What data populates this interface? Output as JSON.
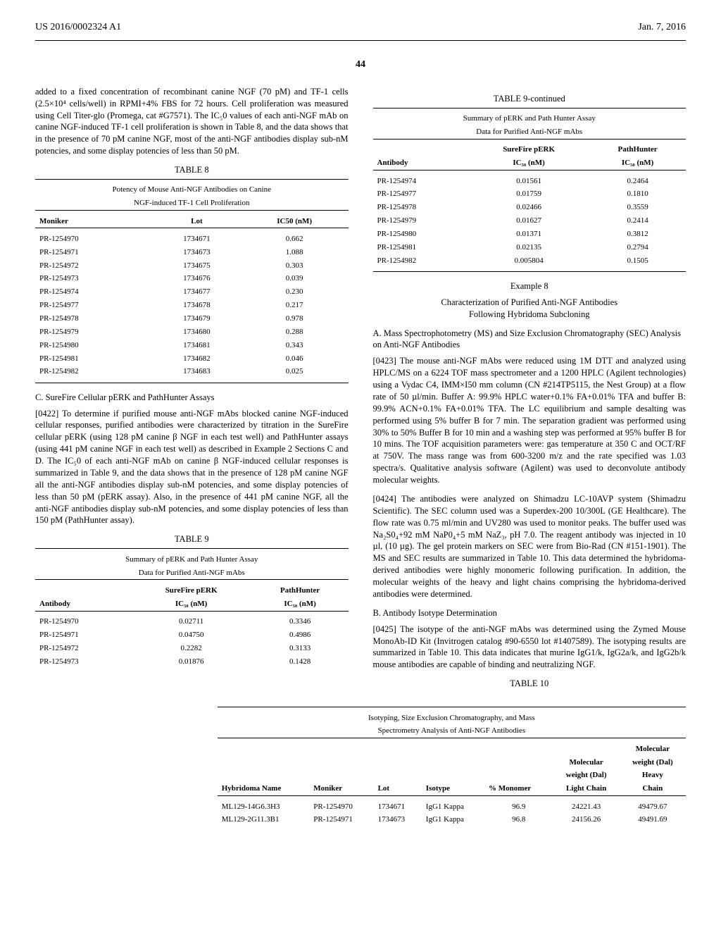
{
  "header": {
    "doc_number": "US 2016/0002324 A1",
    "date": "Jan. 7, 2016"
  },
  "page_number": "44",
  "left_col": {
    "intro_para": "added to a fixed concentration of recombinant canine NGF (70 pM) and TF-1 cells (2.5×10⁴ cells/well) in RPMI+4% FBS for 72 hours. Cell proliferation was measured using Cell Titer-glo (Promega, cat #G7571). The IC₅0 values of each anti-NGF mAb on canine NGF-induced TF-1 cell proliferation is shown in Table 8, and the data shows that in the presence of 70 pM canine NGF, most of the anti-NGF antibodies display sub-nM potencies, and some display potencies of less than 50 pM.",
    "table8": {
      "label": "TABLE 8",
      "title1": "Potency of Mouse Anti-NGF Antibodies on Canine",
      "title2": "NGF-induced TF-1 Cell Proliferation",
      "cols": [
        "Moniker",
        "Lot",
        "IC50 (nM)"
      ],
      "rows": [
        [
          "PR-1254970",
          "1734671",
          "0.662"
        ],
        [
          "PR-1254971",
          "1734673",
          "1.088"
        ],
        [
          "PR-1254972",
          "1734675",
          "0.303"
        ],
        [
          "PR-1254973",
          "1734676",
          "0.039"
        ],
        [
          "PR-1254974",
          "1734677",
          "0.230"
        ],
        [
          "PR-1254977",
          "1734678",
          "0.217"
        ],
        [
          "PR-1254978",
          "1734679",
          "0.978"
        ],
        [
          "PR-1254979",
          "1734680",
          "0.288"
        ],
        [
          "PR-1254980",
          "1734681",
          "0.343"
        ],
        [
          "PR-1254981",
          "1734682",
          "0.046"
        ],
        [
          "PR-1254982",
          "1734683",
          "0.025"
        ]
      ]
    },
    "section_c_heading": "C. SureFire Cellular pERK and PathHunter Assays",
    "para_0422": "[0422]   To determine if purified mouse anti-NGF mAbs blocked canine NGF-induced cellular responses, purified antibodies were characterized by titration in the SureFire cellular pERK (using 128 pM canine β NGF in each test well) and PathHunter assays (using 441 pM canine NGF in each test well) as described in Example 2 Sections C and D. The IC₅0 of each anti-NGF mAb on canine β NGF-induced cellular responses is summarized in Table 9, and the data shows that in the presence of 128 pM canine NGF all the anti-NGF antibodies display sub-nM potencies, and some display potencies of less than 50 pM (pERK assay). Also, in the presence of 441 pM canine NGF, all the anti-NGF antibodies display sub-nM potencies, and some display potencies of less than 150 pM (PathHunter assay).",
    "table9": {
      "label": "TABLE 9",
      "title1": "Summary of pERK and Path Hunter Assay",
      "title2": "Data for Purified Anti-NGF mAbs",
      "cols": [
        "Antibody",
        "SureFire pERK IC₅₀ (nM)",
        "PathHunter IC₅₀ (nM)"
      ],
      "col1": "Antibody",
      "col2a": "SureFire pERK",
      "col2b": "IC₅₀ (nM)",
      "col3a": "PathHunter",
      "col3b": "IC₅₀ (nM)",
      "rows": [
        [
          "PR-1254970",
          "0.02711",
          "0.3346"
        ],
        [
          "PR-1254971",
          "0.04750",
          "0.4986"
        ],
        [
          "PR-1254972",
          "0.2282",
          "0.3133"
        ],
        [
          "PR-1254973",
          "0.01876",
          "0.1428"
        ]
      ]
    }
  },
  "right_col": {
    "table9c": {
      "label": "TABLE 9-continued",
      "title1": "Summary of pERK and Path Hunter Assay",
      "title2": "Data for Purified Anti-NGF mAbs",
      "col1": "Antibody",
      "col2a": "SureFire pERK",
      "col2b": "IC₅₀ (nM)",
      "col3a": "PathHunter",
      "col3b": "IC₅₀ (nM)",
      "rows": [
        [
          "PR-1254974",
          "0.01561",
          "0.2464"
        ],
        [
          "PR-1254977",
          "0.01759",
          "0.1810"
        ],
        [
          "PR-1254978",
          "0.02466",
          "0.3559"
        ],
        [
          "PR-1254979",
          "0.01627",
          "0.2414"
        ],
        [
          "PR-1254980",
          "0.01371",
          "0.3812"
        ],
        [
          "PR-1254981",
          "0.02135",
          "0.2794"
        ],
        [
          "PR-1254982",
          "0.005804",
          "0.1505"
        ]
      ]
    },
    "example8_label": "Example 8",
    "example8_title1": "Characterization of Purified Anti-NGF Antibodies",
    "example8_title2": "Following Hybridoma Subcloning",
    "section_a_heading": "A. Mass Spectrophotometry (MS) and Size Exclusion Chromatography (SEC) Analysis on Anti-NGF Antibodies",
    "para_0423": "[0423]   The mouse anti-NGF mAbs were reduced using 1M DTT and analyzed using HPLC/MS on a 6224 TOF mass spectrometer and a 1200 HPLC (Agilent technologies) using a Vydac C4, IMM×I50 mm column (CN #214TP5115, the Nest Group) at a flow rate of 50 µl/min. Buffer A: 99.9% HPLC water+0.1% FA+0.01% TFA and buffer B: 99.9% ACN+0.1% FA+0.01% TFA. The LC equilibrium and sample desalting was performed using 5% buffer B for 7 min. The separation gradient was performed using 30% to 50% Buffer B for 10 min and a washing step was performed at 95% buffer B for 10 mins. The TOF acquisition parameters were: gas temperature at 350 C and OCT/RF at 750V. The mass range was from 600-3200 m/z and the rate specified was 1.03 spectra/s. Qualitative analysis software (Agilent) was used to deconvolute antibody molecular weights.",
    "para_0424": "[0424]   The antibodies were analyzed on Shimadzu LC-10AVP system (Shimadzu Scientific). The SEC column used was a Superdex-200 10/300L (GE Healthcare). The flow rate was 0.75 ml/min and UV280 was used to monitor peaks. The buffer used was Na₂S0₄+92 mM NaP0₄+5 mM NaZ₃, pH 7.0. The reagent antibody was injected in 10 µl, (10 µg). The gel protein markers on SEC were from Bio-Rad (CN #151-1901). The MS and SEC results are summarized in Table 10. This data determined the hybridoma-derived antibodies were highly monomeric following purification. In addition, the molecular weights of the heavy and light chains comprising the hybridoma-derived antibodies were determined.",
    "section_b_heading": "B. Antibody Isotype Determination",
    "para_0425": "[0425]   The isotype of the anti-NGF mAbs was determined using the Zymed Mouse MonoAb-ID Kit (Invitrogen catalog #90-6550 lot #1407589). The isotyping results are summarized in Table 10. This data indicates that murine IgG1/k, IgG2a/k, and IgG2b/k mouse antibodies are capable of binding and neutralizing NGF."
  },
  "table10": {
    "label": "TABLE 10",
    "title1": "Isotyping, Size Exclusion Chromatography, and Mass",
    "title2": "Spectrometry Analysis of Anti-NGF Antibodies",
    "cols": {
      "c1": "Hybridoma Name",
      "c2": "Moniker",
      "c3": "Lot",
      "c4": "Isotype",
      "c5": "% Monomer",
      "c6a": "Molecular",
      "c6b": "weight (Dal)",
      "c6c": "Light Chain",
      "c7a": "Molecular",
      "c7b": "weight (Dal)",
      "c7c": "Heavy",
      "c7d": "Chain"
    },
    "rows": [
      [
        "ML129-14G6.3H3",
        "PR-1254970",
        "1734671",
        "IgG1 Kappa",
        "96.9",
        "24221.43",
        "49479.67"
      ],
      [
        "ML129-2G11.3B1",
        "PR-1254971",
        "1734673",
        "IgG1 Kappa",
        "96.8",
        "24156.26",
        "49491.69"
      ]
    ]
  }
}
